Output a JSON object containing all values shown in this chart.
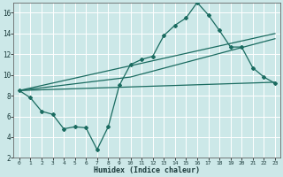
{
  "bg_color": "#cce8e8",
  "grid_color": "#ffffff",
  "line_color": "#1a6b60",
  "xlabel": "Humidex (Indice chaleur)",
  "xlim": [
    -0.5,
    23.5
  ],
  "ylim": [
    2,
    17
  ],
  "xticks": [
    0,
    1,
    2,
    3,
    4,
    5,
    6,
    7,
    8,
    9,
    10,
    11,
    12,
    13,
    14,
    15,
    16,
    17,
    18,
    19,
    20,
    21,
    22,
    23
  ],
  "yticks": [
    2,
    4,
    6,
    8,
    10,
    12,
    14,
    16
  ],
  "line1_x": [
    0,
    1,
    2,
    3,
    4,
    5,
    6,
    7,
    8,
    9,
    10,
    11,
    12,
    13,
    14,
    15,
    16,
    17,
    18,
    19,
    20,
    21,
    22,
    23
  ],
  "line1_y": [
    8.5,
    7.8,
    6.5,
    6.2,
    4.8,
    5.0,
    4.9,
    2.8,
    5.0,
    9.0,
    11.0,
    11.5,
    11.8,
    13.8,
    14.8,
    15.5,
    17.0,
    15.8,
    14.3,
    12.7,
    12.7,
    10.7,
    9.8,
    9.2
  ],
  "line2_x": [
    0,
    23
  ],
  "line2_y": [
    8.5,
    9.3
  ],
  "line3_x": [
    0,
    23
  ],
  "line3_y": [
    8.5,
    14.0
  ],
  "line4_x": [
    0,
    10,
    23
  ],
  "line4_y": [
    8.5,
    9.8,
    13.5
  ]
}
